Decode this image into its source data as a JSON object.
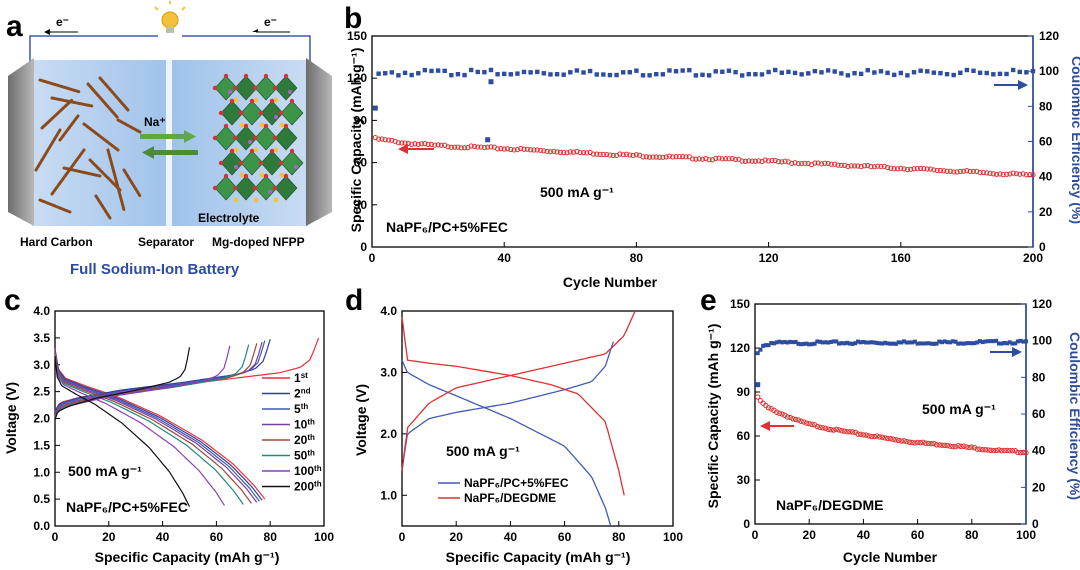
{
  "colors": {
    "red": "#e03030",
    "blue": "#2c4da0",
    "dark_blue": "#2f3f9a",
    "axis": "#000000"
  },
  "panel_a": {
    "letter": "a",
    "electron_left": "e⁻",
    "electron_right": "e⁻",
    "ion_label": "Na⁺",
    "electrolyte_label": "Electrolyte",
    "label_left": "Hard Carbon",
    "label_middle": "Separator",
    "label_right": "Mg-doped NFPP",
    "caption": "Full Sodium-Ion Battery"
  },
  "chart_data": [
    {
      "id": "b",
      "letter": "b",
      "type": "scatter",
      "xlabel": "Cycle Number",
      "ylabel": "Specific Capacity (mAh g⁻¹)",
      "y2label": "Coulombic Efficiency (%)",
      "xlim": [
        0,
        200
      ],
      "ylim": [
        0,
        150
      ],
      "y2lim": [
        0,
        120
      ],
      "xticks": [
        0,
        40,
        80,
        120,
        160,
        200
      ],
      "yticks": [
        0,
        30,
        60,
        90,
        120,
        150
      ],
      "y2ticks": [
        0,
        20,
        40,
        60,
        80,
        100,
        120
      ],
      "annotation": "500 mA g⁻¹",
      "electrolyte": "NaPF₆/PC+5%FEC",
      "series": [
        {
          "axis": "left",
          "color": "red",
          "marker": "circle",
          "x": [
            1,
            10,
            20,
            40,
            60,
            80,
            100,
            120,
            140,
            160,
            180,
            200
          ],
          "y": [
            77,
            74,
            72,
            70,
            67.5,
            65,
            63,
            61,
            58.5,
            56,
            53.5,
            51
          ]
        },
        {
          "axis": "right",
          "color": "blue",
          "marker": "square",
          "x": [
            1,
            5,
            10,
            200
          ],
          "y": [
            99,
            98.5,
            99.5,
            99.5
          ],
          "outliers": [
            {
              "x": 1,
              "y": 79
            },
            {
              "x": 36,
              "y": 94
            },
            {
              "x": 35,
              "y": 61
            }
          ]
        }
      ]
    },
    {
      "id": "c",
      "letter": "c",
      "type": "line",
      "xlabel": "Specific Capacity (mAh g⁻¹)",
      "ylabel": "Voltage (V)",
      "xlim": [
        0,
        100
      ],
      "ylim": [
        0,
        4
      ],
      "xticks": [
        0,
        20,
        40,
        60,
        80,
        100
      ],
      "yticks": [
        0.0,
        0.5,
        1.0,
        1.5,
        2.0,
        2.5,
        3.0,
        3.5,
        4.0
      ],
      "annotation": "500 mA g⁻¹",
      "electrolyte": "NaPF₆/PC+5%FEC",
      "series": [
        {
          "name": "1st",
          "label_main": "1",
          "label_sup": "st",
          "color": "#e8333a",
          "charge_cap": 98,
          "discharge_cap": 78
        },
        {
          "name": "2nd",
          "label_main": "2",
          "label_sup": "nd",
          "color": "#2f3f9a",
          "charge_cap": 80,
          "discharge_cap": 77
        },
        {
          "name": "5th",
          "label_main": "5",
          "label_sup": "th",
          "color": "#3d57b8",
          "charge_cap": 78,
          "discharge_cap": 76
        },
        {
          "name": "10th",
          "label_main": "10",
          "label_sup": "th",
          "color": "#7a3fa0",
          "charge_cap": 77,
          "discharge_cap": 75
        },
        {
          "name": "20th",
          "label_main": "20",
          "label_sup": "th",
          "color": "#9a4a3a",
          "charge_cap": 75,
          "discharge_cap": 73
        },
        {
          "name": "50th",
          "label_main": "50",
          "label_sup": "th",
          "color": "#1f8a7a",
          "charge_cap": 72,
          "discharge_cap": 70
        },
        {
          "name": "100th",
          "label_main": "100",
          "label_sup": "th",
          "color": "#8a3fb8",
          "charge_cap": 65,
          "discharge_cap": 63
        },
        {
          "name": "200th",
          "label_main": "200",
          "label_sup": "th",
          "color": "#111111",
          "charge_cap": 50,
          "discharge_cap": 50
        }
      ]
    },
    {
      "id": "d",
      "letter": "d",
      "type": "line",
      "xlabel": "Specific Capacity (mAh g⁻¹)",
      "ylabel": "Voltage (V)",
      "xlim": [
        0,
        100
      ],
      "ylim": [
        0.5,
        4.0
      ],
      "xticks": [
        0,
        20,
        40,
        60,
        80,
        100
      ],
      "yticks": [
        1.0,
        2.0,
        3.0,
        4.0
      ],
      "annotation": "500 mA g⁻¹",
      "series": [
        {
          "name": "NaPF₆/PC+5%FEC",
          "color": "#3f5bb8",
          "charge": {
            "x": [
              0,
              2,
              10,
              20,
              40,
              60,
              70,
              75,
              78
            ],
            "y": [
              1.4,
              2.0,
              2.25,
              2.35,
              2.5,
              2.72,
              2.85,
              3.1,
              3.5
            ]
          },
          "discharge": {
            "x": [
              0,
              2,
              10,
              20,
              40,
              60,
              70,
              75,
              77
            ],
            "y": [
              3.2,
              3.0,
              2.8,
              2.62,
              2.25,
              1.8,
              1.3,
              0.8,
              0.5
            ]
          }
        },
        {
          "name": "NaPF₆/DEGDME",
          "color": "#e03030",
          "charge": {
            "x": [
              0,
              2,
              10,
              20,
              40,
              60,
              75,
              82,
              86
            ],
            "y": [
              1.4,
              2.1,
              2.5,
              2.75,
              2.95,
              3.15,
              3.3,
              3.6,
              4.0
            ]
          },
          "discharge": {
            "x": [
              0,
              2,
              10,
              20,
              40,
              55,
              65,
              75,
              80,
              82
            ],
            "y": [
              3.9,
              3.2,
              3.15,
              3.1,
              2.95,
              2.8,
              2.65,
              2.2,
              1.4,
              1.0
            ]
          }
        }
      ]
    },
    {
      "id": "e",
      "letter": "e",
      "type": "scatter",
      "xlabel": "Cycle Number",
      "ylabel": "Specific Capacity (mAh g⁻¹)",
      "y2label": "Coulombic Efficiency (%)",
      "xlim": [
        0,
        100
      ],
      "ylim": [
        0,
        150
      ],
      "y2lim": [
        0,
        120
      ],
      "xticks": [
        0,
        20,
        40,
        60,
        80,
        100
      ],
      "yticks": [
        0,
        30,
        60,
        90,
        120,
        150
      ],
      "y2ticks": [
        0,
        20,
        40,
        60,
        80,
        100,
        120
      ],
      "annotation": "500 mA g⁻¹",
      "electrolyte": "NaPF₆/DEGDME",
      "series": [
        {
          "axis": "left",
          "color": "red",
          "marker": "circle",
          "x": [
            1,
            3,
            5,
            10,
            15,
            20,
            30,
            40,
            50,
            60,
            70,
            80,
            90,
            100
          ],
          "y": [
            86,
            82,
            79,
            75,
            71,
            68,
            64,
            61,
            58,
            55.5,
            54,
            52,
            50,
            49
          ]
        },
        {
          "axis": "right",
          "color": "blue",
          "marker": "square",
          "x": [
            1,
            3,
            6,
            100
          ],
          "y": [
            94,
            97.5,
            99,
            99.5
          ],
          "outliers": [
            {
              "x": 1,
              "y": 76
            }
          ]
        }
      ]
    }
  ]
}
